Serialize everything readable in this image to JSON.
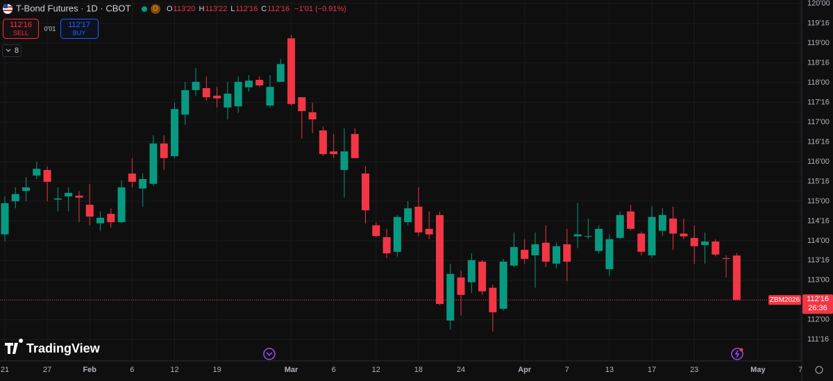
{
  "chart_data": {
    "type": "candlestick",
    "legend": {
      "title": "T-Bond Futures · 1D · CBOT",
      "badge": "D",
      "ohlc": [
        {
          "key": "O",
          "value": "113'20"
        },
        {
          "key": "H",
          "value": "113'22"
        },
        {
          "key": "L",
          "value": "112'16"
        },
        {
          "key": "C",
          "value": "112'16"
        }
      ],
      "change": "−1'01 (−0.91%)"
    },
    "trade": {
      "sell_price": "112'16",
      "sell_label": "SELL",
      "spread": "0'01",
      "buy_price": "112'17",
      "buy_label": "BUY"
    },
    "indicators": "8",
    "brand": "TradingView",
    "symbol": "ZBM2026",
    "price_line": {
      "value": 112.5,
      "label": "112'16"
    },
    "countdown": "26:36",
    "up_color": "#089981",
    "down_color": "#f23645",
    "grid": true,
    "categories": [
      "21",
      null,
      null,
      null,
      "27",
      null,
      null,
      null,
      "Feb",
      null,
      null,
      null,
      "6",
      null,
      null,
      null,
      "12",
      null,
      null,
      null,
      "19",
      null,
      null,
      null,
      null,
      null,
      null,
      "Mar",
      null,
      null,
      null,
      "6",
      null,
      null,
      null,
      "12",
      null,
      null,
      null,
      "18",
      null,
      null,
      null,
      "24",
      null,
      null,
      null,
      null,
      null,
      "Apr",
      null,
      null,
      null,
      "7",
      null,
      null,
      null,
      "13",
      null,
      null,
      null,
      "17",
      null,
      null,
      null,
      "23",
      null,
      null,
      null,
      null,
      null,
      "May",
      null,
      null,
      null,
      "7"
    ],
    "open": [
      114.16,
      115.0,
      115.26,
      115.65,
      115.79,
      115.04,
      115.12,
      115.14,
      114.91,
      114.44,
      114.68,
      114.47,
      115.7,
      115.32,
      115.44,
      116.46,
      116.14,
      117.19,
      117.81,
      117.86,
      117.67,
      117.37,
      117.4,
      117.88,
      118.07,
      117.42,
      118.02,
      119.12,
      117.63,
      117.25,
      116.79,
      116.26,
      115.79,
      116.7,
      115.7,
      114.39,
      114.09,
      113.72,
      114.47,
      114.86,
      114.3,
      114.65,
      111.98,
      113.07,
      112.95,
      113.47,
      112.81,
      112.28,
      113.37,
      113.77,
      113.63,
      113.95,
      113.42,
      113.91,
      114.11,
      114.12,
      113.74,
      113.28,
      114.07,
      114.74,
      114.18,
      113.63,
      114.25,
      114.56,
      114.18,
      114.07,
      113.89,
      113.98,
      113.56,
      113.625,
      null,
      null,
      null,
      null,
      null,
      null
    ],
    "high": [
      115.12,
      115.35,
      115.61,
      116.0,
      115.88,
      115.35,
      115.35,
      115.26,
      115.44,
      114.74,
      114.82,
      115.53,
      116.09,
      115.7,
      116.67,
      116.67,
      117.49,
      118.02,
      118.37,
      118.16,
      117.89,
      118.02,
      118.16,
      118.19,
      118.16,
      118.19,
      118.6,
      119.21,
      117.63,
      117.49,
      116.89,
      116.7,
      116.84,
      116.84,
      115.88,
      114.47,
      114.3,
      114.65,
      115.0,
      115.35,
      114.74,
      114.74,
      113.42,
      113.25,
      113.68,
      113.51,
      112.89,
      113.54,
      114.21,
      114.04,
      114.21,
      114.39,
      113.95,
      114.3,
      114.96,
      114.56,
      114.39,
      114.16,
      114.74,
      114.91,
      114.23,
      114.88,
      114.82,
      114.86,
      114.56,
      114.39,
      114.21,
      114.04,
      113.63,
      113.6875,
      null,
      null,
      null,
      null,
      null,
      null
    ],
    "low": [
      113.98,
      114.82,
      115.0,
      115.56,
      115.0,
      114.74,
      114.74,
      114.47,
      114.39,
      114.25,
      114.33,
      114.44,
      115.35,
      114.86,
      115.39,
      115.79,
      116.09,
      116.93,
      117.67,
      117.54,
      117.37,
      117.07,
      117.23,
      117.77,
      117.89,
      117.37,
      118.02,
      117.42,
      116.58,
      116.72,
      116.14,
      116.09,
      115.09,
      116.09,
      114.44,
      114.09,
      113.56,
      113.6,
      114.39,
      114.12,
      114.04,
      112.37,
      111.75,
      112.11,
      112.68,
      112.63,
      111.7,
      112.23,
      113.33,
      113.42,
      112.81,
      113.33,
      113.3,
      112.98,
      113.81,
      114.04,
      113.68,
      113.11,
      114.04,
      114.26,
      113.63,
      113.56,
      114.12,
      113.77,
      114.04,
      113.42,
      113.42,
      113.6,
      113.07,
      112.5,
      null,
      null,
      null,
      null,
      null,
      null
    ],
    "close": [
      114.95,
      115.18,
      115.35,
      115.82,
      115.49,
      115.07,
      115.21,
      115.09,
      114.61,
      114.58,
      114.47,
      115.35,
      115.49,
      115.56,
      116.46,
      116.09,
      117.33,
      117.81,
      118.02,
      117.63,
      117.6,
      117.72,
      118.02,
      118.05,
      117.93,
      117.89,
      118.47,
      117.46,
      117.28,
      117.07,
      116.19,
      116.19,
      116.26,
      116.09,
      114.77,
      114.12,
      113.68,
      114.6,
      114.82,
      114.21,
      114.16,
      112.4,
      113.16,
      112.63,
      113.51,
      112.72,
      112.19,
      113.47,
      113.84,
      113.54,
      113.91,
      113.47,
      113.86,
      113.47,
      114.16,
      114.12,
      114.3,
      114.04,
      114.65,
      114.3,
      113.72,
      114.6,
      114.65,
      114.18,
      114.11,
      113.86,
      113.98,
      113.65,
      113.54,
      112.5,
      null,
      null,
      null,
      null,
      null,
      null
    ],
    "ylim": [
      110.96,
      120.09
    ],
    "yticks": [
      {
        "value": 111.5,
        "label": "111'16"
      },
      {
        "value": 112,
        "label": "112'00"
      },
      {
        "value": 112.5,
        "label": "112'16"
      },
      {
        "value": 113,
        "label": "113'00"
      },
      {
        "value": 113.5,
        "label": "113'16"
      },
      {
        "value": 114,
        "label": "114'00"
      },
      {
        "value": 114.5,
        "label": "114'16"
      },
      {
        "value": 115,
        "label": "115'00"
      },
      {
        "value": 115.5,
        "label": "115'16"
      },
      {
        "value": 116,
        "label": "116'00"
      },
      {
        "value": 116.5,
        "label": "116'16"
      },
      {
        "value": 117,
        "label": "117'00"
      },
      {
        "value": 117.5,
        "label": "117'16"
      },
      {
        "value": 118,
        "label": "118'00"
      },
      {
        "value": 118.5,
        "label": "118'16"
      },
      {
        "value": 119,
        "label": "119'00"
      },
      {
        "value": 119.5,
        "label": "119'16"
      },
      {
        "value": 120,
        "label": "120'00"
      }
    ]
  }
}
